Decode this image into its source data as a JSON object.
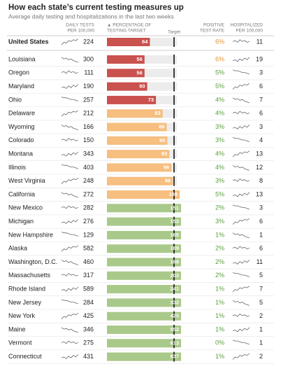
{
  "header": {
    "title": "How each state’s current testing measures up",
    "subtitle": "Average daily testing and hospitalizations in the last two weeks"
  },
  "columns": {
    "tests": [
      "DAILY TESTS",
      "PER 100,000"
    ],
    "target": [
      "▲ PERCENTAGE OF",
      "TESTING TARGET"
    ],
    "target_mark": "Target",
    "rate": [
      "POSITIVE",
      "TEST RATE"
    ],
    "hosp": [
      "HOSPITALIZED",
      "PER 100,000"
    ]
  },
  "table": {
    "rows": [
      [
        "United States",
        224,
        64,
        "6%",
        11
      ],
      [
        "Louisiana",
        300,
        56,
        "6%",
        19
      ],
      [
        "Oregon",
        111,
        56,
        "5%",
        3
      ],
      [
        "Maryland",
        190,
        60,
        "5%",
        6
      ],
      [
        "Ohio",
        257,
        73,
        "4%",
        7
      ],
      [
        "Delaware",
        212,
        83,
        "4%",
        6
      ],
      [
        "Wyoming",
        166,
        89,
        "3%",
        3
      ],
      [
        "Colorado",
        150,
        90,
        "3%",
        4
      ],
      [
        "Montana",
        343,
        93,
        "4%",
        13
      ],
      [
        "Illinois",
        403,
        96,
        "4%",
        12
      ],
      [
        "West Virginia",
        248,
        98,
        "3%",
        8
      ],
      [
        "California",
        272,
        108,
        "5%",
        13
      ],
      [
        "New Mexico",
        282,
        151,
        "2%",
        3
      ],
      [
        "Michigan",
        276,
        153,
        "3%",
        6
      ],
      [
        "New Hampshire",
        129,
        165,
        "1%",
        1
      ],
      [
        "Alaska",
        582,
        189,
        "2%",
        6
      ],
      [
        "Washington, D.C.",
        460,
        198,
        "2%",
        11
      ],
      [
        "Massachusetts",
        317,
        203,
        "2%",
        5
      ],
      [
        "Rhode Island",
        589,
        241,
        "1%",
        7
      ],
      [
        "New Jersey",
        284,
        332,
        "1%",
        5
      ],
      [
        "New York",
        425,
        425,
        "1%",
        2
      ],
      [
        "Maine",
        346,
        552,
        "1%",
        1
      ],
      [
        "Vermont",
        275,
        613,
        "0%",
        1
      ],
      [
        "Connecticut",
        431,
        637,
        "1%",
        2
      ]
    ],
    "bar_colors": [
      "#c9514e",
      "#c9514e",
      "#c9514e",
      "#c9514e",
      "#c9514e",
      "#f6be7f",
      "#f6be7f",
      "#f6be7f",
      "#f6be7f",
      "#f6be7f",
      "#f6be7f",
      "#f6be7f",
      "#a9c98a",
      "#a9c98a",
      "#a9c98a",
      "#a9c98a",
      "#a9c98a",
      "#a9c98a",
      "#a9c98a",
      "#a9c98a",
      "#a9c98a",
      "#a9c98a",
      "#a9c98a",
      "#a9c98a"
    ],
    "rate_colors": [
      "#e8922e",
      "#e8922e",
      "#5aa03c",
      "#5aa03c",
      "#5aa03c",
      "#5aa03c",
      "#5aa03c",
      "#5aa03c",
      "#5aa03c",
      "#5aa03c",
      "#5aa03c",
      "#5aa03c",
      "#5aa03c",
      "#5aa03c",
      "#5aa03c",
      "#5aa03c",
      "#5aa03c",
      "#5aa03c",
      "#5aa03c",
      "#5aa03c",
      "#5aa03c",
      "#5aa03c",
      "#5aa03c",
      "#5aa03c"
    ]
  }
}
